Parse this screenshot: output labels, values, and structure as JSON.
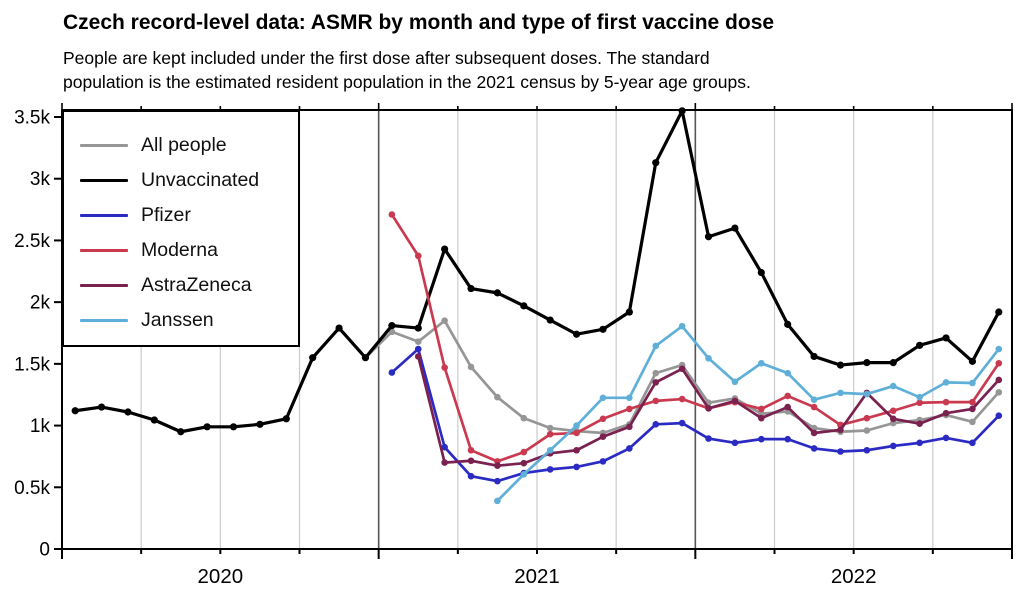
{
  "header": {
    "title": "Czech record-level data: ASMR by month and type of first vaccine dose",
    "subtitle_line1": "People are kept included under the first dose after subsequent doses. The standard",
    "subtitle_line2": "population is the estimated resident population in the 2021 census by 5-year age groups."
  },
  "chart_data": {
    "type": "line",
    "title": "Czech record-level data: ASMR by month and type of first vaccine dose",
    "x_unit": "month",
    "x_start": "2020-01",
    "x_end": "2022-12",
    "months_total": 36,
    "x_tick_labels": [
      "2020",
      "2021",
      "2022"
    ],
    "y_tick_values": [
      0,
      500,
      1000,
      1500,
      2000,
      2500,
      3000,
      3500
    ],
    "y_tick_labels": [
      "0",
      "0.5k",
      "1k",
      "1.5k",
      "2k",
      "2.5k",
      "3k",
      "3.5k"
    ],
    "ylim": [
      0,
      3500
    ],
    "grid": "vertical quarterly lines, darker lines at year boundaries",
    "legend_position": "top-left",
    "axis_color": "#000000",
    "minor_grid_color": "#cccccc",
    "year_grid_color": "#555555",
    "series": [
      {
        "name": "All people",
        "color": "#969696",
        "start_month_index": 0,
        "values": [
          1120,
          1150,
          1110,
          1045,
          950,
          990,
          990,
          1010,
          1055,
          1550,
          1790,
          1550,
          1760,
          1680,
          1850,
          1475,
          1230,
          1060,
          980,
          955,
          940,
          1010,
          1425,
          1490,
          1185,
          1220,
          1095,
          1115,
          980,
          950,
          960,
          1020,
          1045,
          1085,
          1030,
          1270
        ]
      },
      {
        "name": "Unvaccinated",
        "color": "#000000",
        "start_month_index": 0,
        "values": [
          1120,
          1150,
          1110,
          1045,
          950,
          990,
          990,
          1010,
          1055,
          1550,
          1790,
          1550,
          1810,
          1790,
          2430,
          2110,
          2075,
          1970,
          1855,
          1740,
          1780,
          1920,
          3130,
          3550,
          2530,
          2600,
          2240,
          1820,
          1560,
          1490,
          1510,
          1510,
          1650,
          1710,
          1520,
          1920
        ]
      },
      {
        "name": "Pfizer",
        "color": "#2b2bc4",
        "start_month_index": 12,
        "values": [
          1430,
          1620,
          825,
          590,
          550,
          615,
          645,
          665,
          710,
          815,
          1010,
          1020,
          895,
          860,
          890,
          890,
          815,
          790,
          800,
          835,
          860,
          900,
          860,
          1080
        ]
      },
      {
        "name": "Moderna",
        "color": "#c93a50",
        "start_month_index": 12,
        "values": [
          2710,
          2375,
          1470,
          800,
          710,
          785,
          930,
          940,
          1055,
          1135,
          1200,
          1215,
          1140,
          1190,
          1135,
          1240,
          1150,
          1005,
          1060,
          1120,
          1185,
          1190,
          1190,
          1505
        ]
      },
      {
        "name": "AstraZeneca",
        "color": "#7a2150",
        "start_month_index": 13,
        "values": [
          1560,
          700,
          715,
          675,
          695,
          775,
          800,
          910,
          990,
          1350,
          1460,
          1140,
          1200,
          1060,
          1150,
          940,
          965,
          1265,
          1055,
          1015,
          1100,
          1135,
          1370
        ]
      },
      {
        "name": "Janssen",
        "color": "#5fafd8",
        "start_month_index": 16,
        "values": [
          390,
          605,
          800,
          1000,
          1225,
          1225,
          1645,
          1805,
          1545,
          1355,
          1505,
          1425,
          1210,
          1265,
          1255,
          1320,
          1230,
          1350,
          1345,
          1620
        ]
      }
    ]
  }
}
